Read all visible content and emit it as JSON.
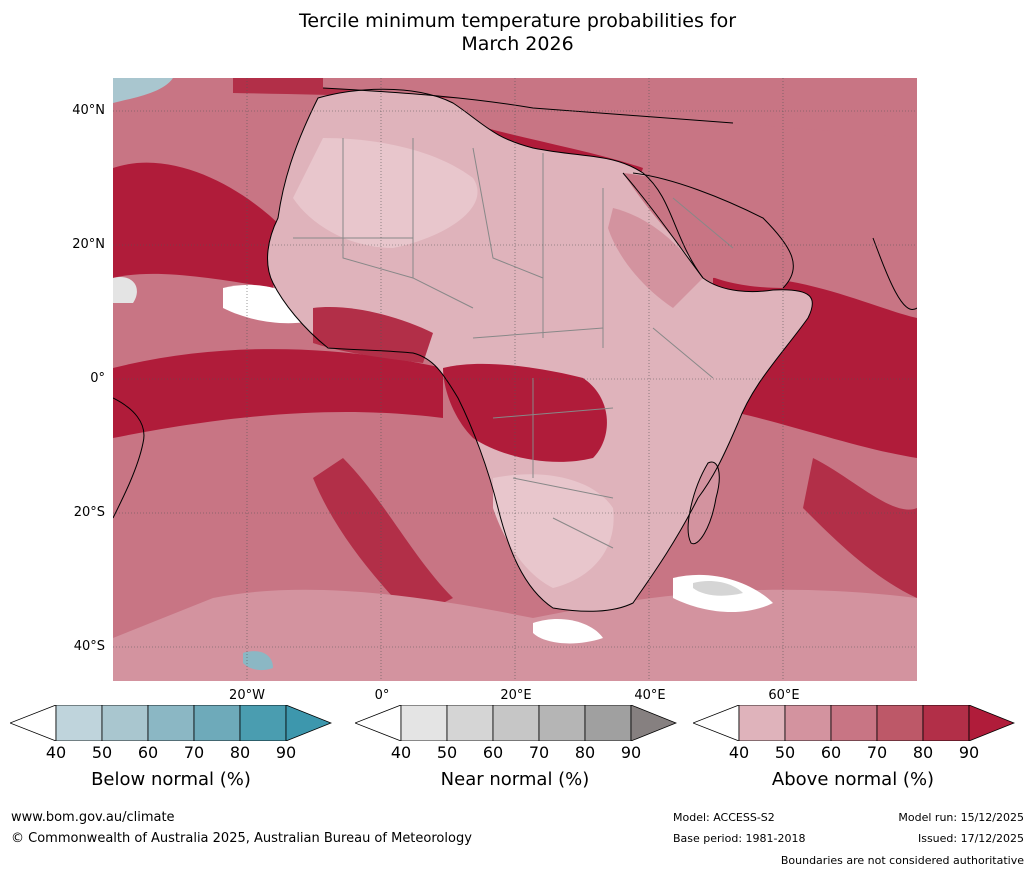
{
  "title": {
    "line1": "Tercile minimum temperature probabilities for",
    "line2": "March 2026"
  },
  "map": {
    "lat_labels": [
      "40°N",
      "20°N",
      "0°",
      "20°S",
      "40°S"
    ],
    "lon_labels": [
      "20°W",
      "0°",
      "20°E",
      "40°E",
      "60°E"
    ],
    "colors": {
      "above": [
        "#dfb3bb",
        "#d3939f",
        "#c87584",
        "#bd5868",
        "#b22f48",
        "#b01c3a"
      ],
      "below": [
        "#bfd4dc",
        "#a9c6cf",
        "#8bb7c4",
        "#6eaaba",
        "#4a9db0",
        "#3d97ad"
      ],
      "near": [
        "#e4e4e4",
        "#d5d5d5",
        "#c6c6c6",
        "#b5b5b5",
        "#a0a0a0",
        "#868080"
      ],
      "border": "#000000",
      "country_border": "#888888"
    }
  },
  "colorbars": [
    {
      "id": "below",
      "label": "Below normal (%)",
      "ticks": [
        "40",
        "50",
        "60",
        "70",
        "80",
        "90"
      ]
    },
    {
      "id": "near",
      "label": "Near normal (%)",
      "ticks": [
        "40",
        "50",
        "60",
        "70",
        "80",
        "90"
      ]
    },
    {
      "id": "above",
      "label": "Above normal (%)",
      "ticks": [
        "40",
        "50",
        "60",
        "70",
        "80",
        "90"
      ]
    }
  ],
  "footer": {
    "website": "www.bom.gov.au/climate",
    "copyright": "© Commonwealth of Australia 2025, Australian Bureau of Meteorology",
    "model": "Model: ACCESS-S2",
    "base_period": "Base period: 1981-2018",
    "model_run": "Model run: 15/12/2025",
    "issued": "Issued: 17/12/2025",
    "disclaimer": "Boundaries are not considered authoritative"
  }
}
